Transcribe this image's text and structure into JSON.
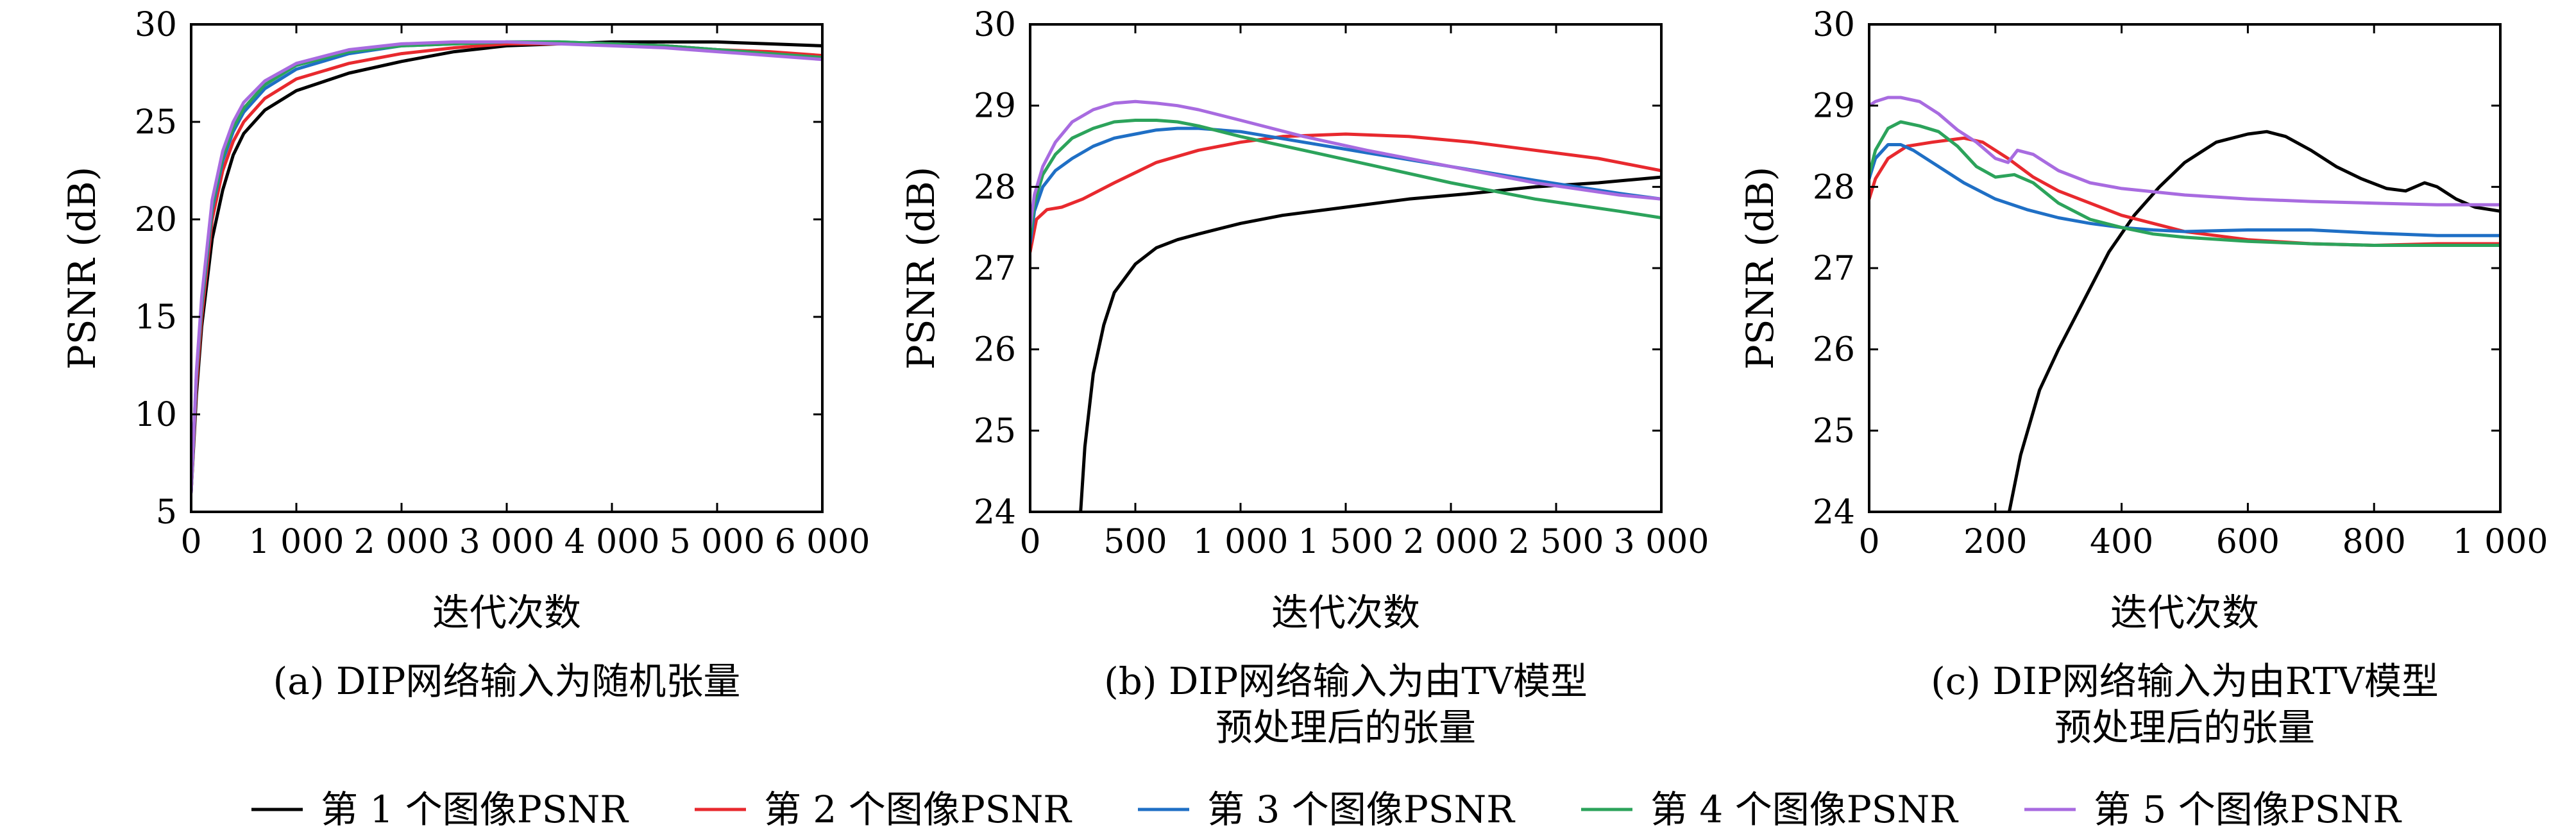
{
  "chart_data": [
    {
      "type": "line",
      "caption": "(a) DIP网络输入为随机张量",
      "xlabel": "迭代次数",
      "ylabel": "PSNR (dB)",
      "xlim": [
        0,
        6000
      ],
      "ylim": [
        5,
        30
      ],
      "xticks": [
        0,
        1000,
        2000,
        3000,
        4000,
        5000,
        6000
      ],
      "xtick_labels": [
        "0",
        "1 000",
        "2 000",
        "3 000",
        "4 000",
        "5 000",
        "6 000"
      ],
      "yticks": [
        5,
        10,
        15,
        20,
        25,
        30
      ],
      "ytick_labels": [
        "5",
        "10",
        "15",
        "20",
        "25",
        "30"
      ],
      "series": [
        {
          "name": "第 1 个图像PSNR",
          "color": "#000000",
          "x": [
            0,
            50,
            100,
            200,
            300,
            400,
            500,
            700,
            1000,
            1500,
            2000,
            2500,
            3000,
            3500,
            4000,
            4500,
            5000,
            5500,
            6000
          ],
          "y": [
            6.0,
            11.0,
            14.5,
            19.0,
            21.5,
            23.3,
            24.4,
            25.6,
            26.6,
            27.5,
            28.1,
            28.6,
            28.9,
            29.0,
            29.1,
            29.1,
            29.1,
            29.0,
            28.9
          ]
        },
        {
          "name": "第 2 个图像PSNR",
          "color": "#e8292e",
          "x": [
            0,
            50,
            100,
            200,
            300,
            400,
            500,
            700,
            1000,
            1500,
            2000,
            2500,
            3000,
            3500,
            4000,
            4500,
            5000,
            5500,
            6000
          ],
          "y": [
            6.0,
            11.5,
            15.0,
            20.0,
            22.5,
            24.0,
            25.0,
            26.2,
            27.2,
            28.0,
            28.5,
            28.8,
            29.0,
            29.0,
            29.0,
            28.9,
            28.7,
            28.6,
            28.4
          ]
        },
        {
          "name": "第 3 个图像PSNR",
          "color": "#1f6fc5",
          "x": [
            0,
            50,
            100,
            200,
            300,
            400,
            500,
            700,
            1000,
            1500,
            2000,
            2500,
            3000,
            3500,
            4000,
            4500,
            5000,
            5500,
            6000
          ],
          "y": [
            6.0,
            12.0,
            15.5,
            20.5,
            23.0,
            24.5,
            25.5,
            26.7,
            27.7,
            28.5,
            28.9,
            29.0,
            29.1,
            29.1,
            29.0,
            28.9,
            28.7,
            28.5,
            28.3
          ]
        },
        {
          "name": "第 4 个图像PSNR",
          "color": "#2ca35b",
          "x": [
            0,
            50,
            100,
            200,
            300,
            400,
            500,
            700,
            1000,
            1500,
            2000,
            2500,
            3000,
            3500,
            4000,
            4500,
            5000,
            5500,
            6000
          ],
          "y": [
            6.0,
            12.0,
            15.7,
            20.7,
            23.2,
            24.7,
            25.7,
            26.9,
            27.9,
            28.6,
            28.9,
            29.0,
            29.1,
            29.1,
            29.0,
            28.9,
            28.7,
            28.5,
            28.3
          ]
        },
        {
          "name": "第 5 个图像PSNR",
          "color": "#a86be0",
          "x": [
            0,
            50,
            100,
            200,
            300,
            400,
            500,
            700,
            1000,
            1500,
            2000,
            2500,
            3000,
            3500,
            4000,
            4500,
            5000,
            5500,
            6000
          ],
          "y": [
            6.0,
            12.2,
            16.0,
            21.0,
            23.5,
            25.0,
            26.0,
            27.1,
            28.0,
            28.7,
            29.0,
            29.1,
            29.1,
            29.0,
            28.9,
            28.8,
            28.6,
            28.4,
            28.2
          ]
        }
      ]
    },
    {
      "type": "line",
      "caption": [
        "(b) DIP网络输入为由TV模型",
        "预处理后的张量"
      ],
      "xlabel": "迭代次数",
      "ylabel": "PSNR (dB)",
      "xlim": [
        0,
        3000
      ],
      "ylim": [
        24,
        30
      ],
      "xticks": [
        0,
        500,
        1000,
        1500,
        2000,
        2500,
        3000
      ],
      "xtick_labels": [
        "0",
        "500",
        "1 000",
        "1 500",
        "2 000",
        "2 500",
        "3 000"
      ],
      "yticks": [
        24,
        25,
        26,
        27,
        28,
        29,
        30
      ],
      "ytick_labels": [
        "24",
        "25",
        "26",
        "27",
        "28",
        "29",
        "30"
      ],
      "series": [
        {
          "name": "第 1 个图像PSNR",
          "color": "#000000",
          "x": [
            240,
            260,
            300,
            350,
            400,
            500,
            600,
            700,
            800,
            1000,
            1200,
            1500,
            1800,
            2100,
            2400,
            2700,
            3000
          ],
          "y": [
            24.0,
            24.8,
            25.7,
            26.3,
            26.7,
            27.05,
            27.25,
            27.35,
            27.42,
            27.55,
            27.65,
            27.75,
            27.85,
            27.92,
            28.0,
            28.05,
            28.12
          ]
        },
        {
          "name": "第 2 个图像PSNR",
          "color": "#e8292e",
          "x": [
            0,
            30,
            80,
            150,
            250,
            400,
            600,
            800,
            1000,
            1200,
            1500,
            1800,
            2100,
            2400,
            2700,
            3000
          ],
          "y": [
            27.2,
            27.6,
            27.72,
            27.75,
            27.85,
            28.05,
            28.3,
            28.45,
            28.55,
            28.62,
            28.65,
            28.62,
            28.55,
            28.45,
            28.35,
            28.2
          ]
        },
        {
          "name": "第 3 个图像PSNR",
          "color": "#1f6fc5",
          "x": [
            0,
            20,
            60,
            120,
            200,
            300,
            400,
            500,
            600,
            700,
            800,
            1000,
            1300,
            1600,
            2000,
            2400,
            2800,
            3000
          ],
          "y": [
            27.3,
            27.7,
            28.0,
            28.2,
            28.35,
            28.5,
            28.6,
            28.65,
            28.7,
            28.72,
            28.72,
            28.68,
            28.55,
            28.42,
            28.25,
            28.08,
            27.92,
            27.85
          ]
        },
        {
          "name": "第 4 个图像PSNR",
          "color": "#2ca35b",
          "x": [
            0,
            20,
            60,
            120,
            200,
            300,
            400,
            500,
            600,
            700,
            800,
            1000,
            1300,
            1600,
            2000,
            2400,
            2800,
            3000
          ],
          "y": [
            27.4,
            27.8,
            28.15,
            28.4,
            28.6,
            28.72,
            28.8,
            28.82,
            28.82,
            28.8,
            28.75,
            28.62,
            28.45,
            28.28,
            28.05,
            27.85,
            27.7,
            27.62
          ]
        },
        {
          "name": "第 5 个图像PSNR",
          "color": "#a86be0",
          "x": [
            0,
            20,
            60,
            120,
            200,
            300,
            400,
            500,
            600,
            700,
            800,
            1000,
            1300,
            1600,
            2000,
            2400,
            2800,
            3000
          ],
          "y": [
            27.5,
            27.9,
            28.25,
            28.55,
            28.8,
            28.95,
            29.03,
            29.05,
            29.03,
            29.0,
            28.95,
            28.82,
            28.62,
            28.45,
            28.25,
            28.05,
            27.9,
            27.85
          ]
        }
      ]
    },
    {
      "type": "line",
      "caption": [
        "(c) DIP网络输入为由RTV模型",
        "预处理后的张量"
      ],
      "xlabel": "迭代次数",
      "ylabel": "PSNR (dB)",
      "xlim": [
        0,
        1000
      ],
      "ylim": [
        24,
        30
      ],
      "xticks": [
        0,
        200,
        400,
        600,
        800,
        1000
      ],
      "xtick_labels": [
        "0",
        "200",
        "400",
        "600",
        "800",
        "1 000"
      ],
      "yticks": [
        24,
        25,
        26,
        27,
        28,
        29,
        30
      ],
      "ytick_labels": [
        "24",
        "25",
        "26",
        "27",
        "28",
        "29",
        "30"
      ],
      "series": [
        {
          "name": "第 1 个图像PSNR",
          "color": "#000000",
          "x": [
            222,
            240,
            270,
            300,
            340,
            380,
            420,
            460,
            500,
            550,
            600,
            630,
            660,
            700,
            740,
            780,
            820,
            850,
            880,
            900,
            930,
            960,
            1000
          ],
          "y": [
            24.0,
            24.7,
            25.5,
            26.0,
            26.6,
            27.2,
            27.65,
            28.0,
            28.3,
            28.55,
            28.65,
            28.68,
            28.62,
            28.45,
            28.25,
            28.1,
            27.98,
            27.95,
            28.05,
            28.0,
            27.85,
            27.75,
            27.7
          ]
        },
        {
          "name": "第 2 个图像PSNR",
          "color": "#e8292e",
          "x": [
            0,
            10,
            30,
            60,
            100,
            150,
            180,
            220,
            260,
            300,
            350,
            400,
            450,
            500,
            600,
            700,
            800,
            900,
            1000
          ],
          "y": [
            27.85,
            28.1,
            28.35,
            28.5,
            28.55,
            28.6,
            28.55,
            28.35,
            28.12,
            27.95,
            27.8,
            27.65,
            27.55,
            27.45,
            27.35,
            27.3,
            27.28,
            27.3,
            27.3
          ]
        },
        {
          "name": "第 3 个图像PSNR",
          "color": "#1f6fc5",
          "x": [
            0,
            10,
            30,
            50,
            70,
            100,
            150,
            200,
            250,
            300,
            350,
            400,
            450,
            500,
            600,
            700,
            800,
            900,
            1000
          ],
          "y": [
            28.1,
            28.35,
            28.52,
            28.52,
            28.45,
            28.3,
            28.05,
            27.85,
            27.72,
            27.62,
            27.55,
            27.5,
            27.47,
            27.45,
            27.47,
            27.47,
            27.43,
            27.4,
            27.4
          ]
        },
        {
          "name": "第 4 个图像PSNR",
          "color": "#2ca35b",
          "x": [
            0,
            10,
            30,
            50,
            80,
            110,
            140,
            170,
            200,
            230,
            260,
            300,
            350,
            400,
            450,
            500,
            600,
            700,
            800,
            900,
            1000
          ],
          "y": [
            28.15,
            28.45,
            28.72,
            28.8,
            28.75,
            28.68,
            28.5,
            28.25,
            28.12,
            28.15,
            28.05,
            27.8,
            27.6,
            27.5,
            27.42,
            27.38,
            27.33,
            27.3,
            27.28,
            27.28,
            27.28
          ]
        },
        {
          "name": "第 5 个图像PSNR",
          "color": "#a86be0",
          "x": [
            0,
            10,
            30,
            50,
            80,
            110,
            140,
            170,
            200,
            220,
            235,
            260,
            300,
            350,
            400,
            500,
            600,
            700,
            800,
            900,
            1000
          ],
          "y": [
            29.0,
            29.05,
            29.1,
            29.1,
            29.05,
            28.9,
            28.7,
            28.55,
            28.35,
            28.3,
            28.45,
            28.4,
            28.2,
            28.05,
            27.98,
            27.9,
            27.85,
            27.82,
            27.8,
            27.78,
            27.78
          ]
        }
      ]
    }
  ],
  "legend": {
    "placement": "bottom",
    "entries": [
      {
        "label": "第 1 个图像PSNR",
        "color": "#000000"
      },
      {
        "label": "第 2 个图像PSNR",
        "color": "#e8292e"
      },
      {
        "label": "第 3 个图像PSNR",
        "color": "#1f6fc5"
      },
      {
        "label": "第 4 个图像PSNR",
        "color": "#2ca35b"
      },
      {
        "label": "第 5 个图像PSNR",
        "color": "#a86be0"
      }
    ]
  }
}
